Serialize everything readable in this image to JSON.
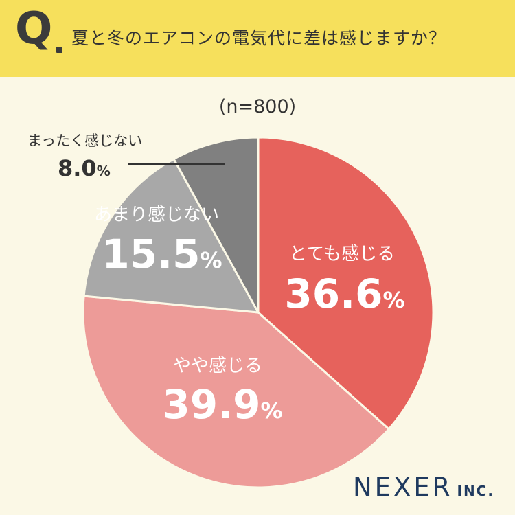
{
  "header": {
    "q_mark": "Q",
    "question": "夏と冬のエアコンの電気代に差は感じますか？"
  },
  "subtitle": "(n=800)",
  "colors": {
    "header_bg": "#f6e05c",
    "page_bg": "#fbf8e6",
    "very": "#e6625c",
    "somewhat": "#ed9b98",
    "not_much": "#a8a8a8",
    "not_at_all": "#808080"
  },
  "chart_data": {
    "type": "pie",
    "start": "top, clockwise",
    "slices": [
      {
        "label": "とても感じる",
        "value": 36.6,
        "display": "36.6",
        "unit": "%",
        "color": "#e6625c"
      },
      {
        "label": "やや感じる",
        "value": 39.9,
        "display": "39.9",
        "unit": "%",
        "color": "#ed9b98"
      },
      {
        "label": "あまり感じない",
        "value": 15.5,
        "display": "15.5",
        "unit": "%",
        "color": "#a8a8a8"
      },
      {
        "label": "まったく感じない",
        "value": 8.0,
        "display": "8.0",
        "unit": "%",
        "color": "#808080"
      }
    ]
  },
  "logo": {
    "main": "NEXER",
    "sub": "INC."
  }
}
